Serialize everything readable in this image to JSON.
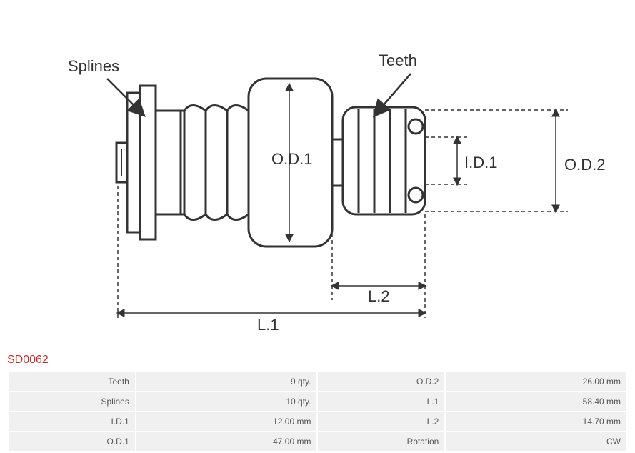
{
  "part_number": "SD0062",
  "diagram": {
    "labels": {
      "splines": "Splines",
      "teeth": "Teeth",
      "od1": "O.D.1",
      "od2": "O.D.2",
      "id1": "I.D.1",
      "l1": "L.1",
      "l2": "L.2"
    },
    "stroke": "#333333",
    "stroke_width": 3,
    "dim_stroke": "#333333",
    "dim_stroke_width": 1.5,
    "label_fontsize": 22,
    "label_color": "#333333"
  },
  "specs": [
    {
      "label1": "Teeth",
      "value1": "9 qty.",
      "label2": "O.D.2",
      "value2": "26.00 mm"
    },
    {
      "label1": "Splines",
      "value1": "10 qty.",
      "label2": "L.1",
      "value2": "58.40 mm"
    },
    {
      "label1": "I.D.1",
      "value1": "12.00 mm",
      "label2": "L.2",
      "value2": "14.70 mm"
    },
    {
      "label1": "O.D.1",
      "value1": "47.00 mm",
      "label2": "Rotation",
      "value2": "CW"
    }
  ],
  "table": {
    "bg": "#f0f0f0",
    "text_color": "#555555",
    "fontsize": 12
  }
}
